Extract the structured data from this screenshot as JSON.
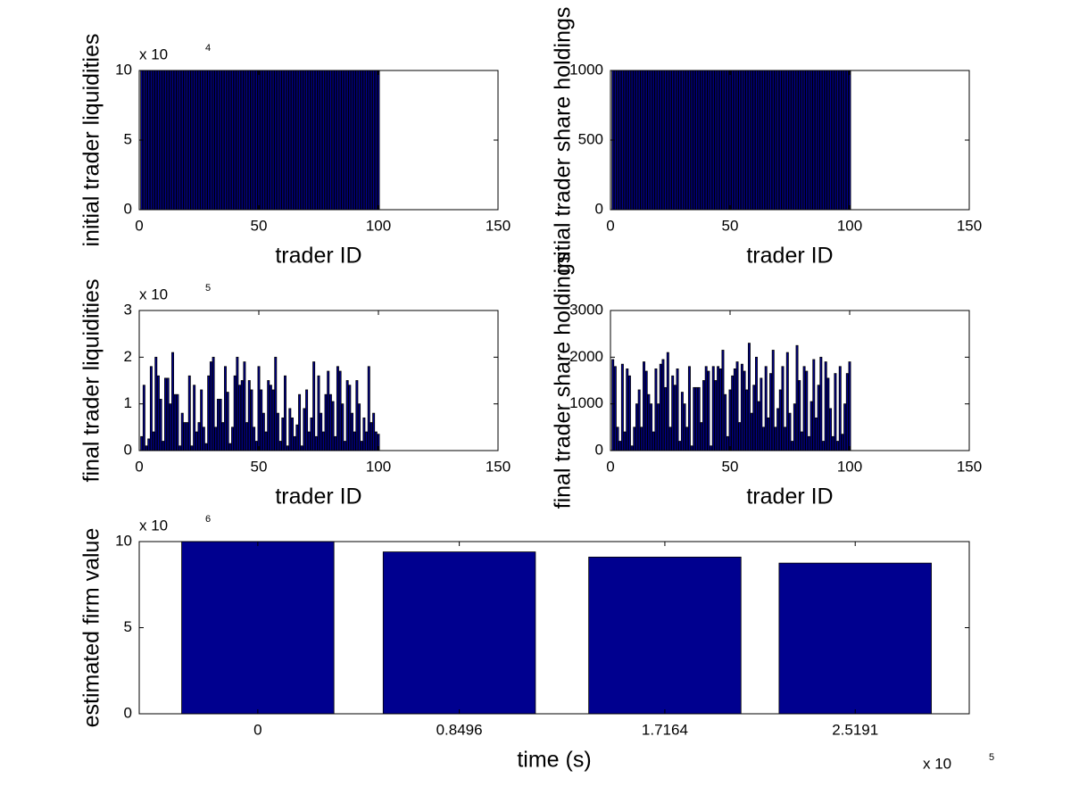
{
  "chart_data": [
    {
      "type": "bar",
      "ylabel": "initial trader liquidities",
      "xlabel": "trader ID",
      "y_scale": {
        "base": "x 10",
        "exponent": "4"
      },
      "color": "#00008f",
      "edge_color": "#000000",
      "x": [
        1,
        2,
        3,
        4,
        5,
        6,
        7,
        8,
        9,
        10,
        11,
        12,
        13,
        14,
        15,
        16,
        17,
        18,
        19,
        20,
        21,
        22,
        23,
        24,
        25,
        26,
        27,
        28,
        29,
        30,
        31,
        32,
        33,
        34,
        35,
        36,
        37,
        38,
        39,
        40,
        41,
        42,
        43,
        44,
        45,
        46,
        47,
        48,
        49,
        50,
        51,
        52,
        53,
        54,
        55,
        56,
        57,
        58,
        59,
        60,
        61,
        62,
        63,
        64,
        65,
        66,
        67,
        68,
        69,
        70,
        71,
        72,
        73,
        74,
        75,
        76,
        77,
        78,
        79,
        80,
        81,
        82,
        83,
        84,
        85,
        86,
        87,
        88,
        89,
        90,
        91,
        92,
        93,
        94,
        95,
        96,
        97,
        98,
        99,
        100
      ],
      "values": [
        10,
        10,
        10,
        10,
        10,
        10,
        10,
        10,
        10,
        10,
        10,
        10,
        10,
        10,
        10,
        10,
        10,
        10,
        10,
        10,
        10,
        10,
        10,
        10,
        10,
        10,
        10,
        10,
        10,
        10,
        10,
        10,
        10,
        10,
        10,
        10,
        10,
        10,
        10,
        10,
        10,
        10,
        10,
        10,
        10,
        10,
        10,
        10,
        10,
        10,
        10,
        10,
        10,
        10,
        10,
        10,
        10,
        10,
        10,
        10,
        10,
        10,
        10,
        10,
        10,
        10,
        10,
        10,
        10,
        10,
        10,
        10,
        10,
        10,
        10,
        10,
        10,
        10,
        10,
        10,
        10,
        10,
        10,
        10,
        10,
        10,
        10,
        10,
        10,
        10,
        10,
        10,
        10,
        10,
        10,
        10,
        10,
        10,
        10,
        10
      ],
      "xlim": [
        0,
        150
      ],
      "xticks": [
        0,
        50,
        100,
        150
      ],
      "ylim": [
        0,
        10
      ],
      "yticks": [
        0,
        5,
        10
      ]
    },
    {
      "type": "bar",
      "ylabel": "initial trader share holdings",
      "xlabel": "trader ID",
      "color": "#00008f",
      "edge_color": "#000000",
      "x": [
        1,
        2,
        3,
        4,
        5,
        6,
        7,
        8,
        9,
        10,
        11,
        12,
        13,
        14,
        15,
        16,
        17,
        18,
        19,
        20,
        21,
        22,
        23,
        24,
        25,
        26,
        27,
        28,
        29,
        30,
        31,
        32,
        33,
        34,
        35,
        36,
        37,
        38,
        39,
        40,
        41,
        42,
        43,
        44,
        45,
        46,
        47,
        48,
        49,
        50,
        51,
        52,
        53,
        54,
        55,
        56,
        57,
        58,
        59,
        60,
        61,
        62,
        63,
        64,
        65,
        66,
        67,
        68,
        69,
        70,
        71,
        72,
        73,
        74,
        75,
        76,
        77,
        78,
        79,
        80,
        81,
        82,
        83,
        84,
        85,
        86,
        87,
        88,
        89,
        90,
        91,
        92,
        93,
        94,
        95,
        96,
        97,
        98,
        99,
        100
      ],
      "values": [
        1000,
        1000,
        1000,
        1000,
        1000,
        1000,
        1000,
        1000,
        1000,
        1000,
        1000,
        1000,
        1000,
        1000,
        1000,
        1000,
        1000,
        1000,
        1000,
        1000,
        1000,
        1000,
        1000,
        1000,
        1000,
        1000,
        1000,
        1000,
        1000,
        1000,
        1000,
        1000,
        1000,
        1000,
        1000,
        1000,
        1000,
        1000,
        1000,
        1000,
        1000,
        1000,
        1000,
        1000,
        1000,
        1000,
        1000,
        1000,
        1000,
        1000,
        1000,
        1000,
        1000,
        1000,
        1000,
        1000,
        1000,
        1000,
        1000,
        1000,
        1000,
        1000,
        1000,
        1000,
        1000,
        1000,
        1000,
        1000,
        1000,
        1000,
        1000,
        1000,
        1000,
        1000,
        1000,
        1000,
        1000,
        1000,
        1000,
        1000,
        1000,
        1000,
        1000,
        1000,
        1000,
        1000,
        1000,
        1000,
        1000,
        1000,
        1000,
        1000,
        1000,
        1000,
        1000,
        1000,
        1000,
        1000,
        1000,
        1000
      ],
      "xlim": [
        0,
        150
      ],
      "xticks": [
        0,
        50,
        100,
        150
      ],
      "ylim": [
        0,
        1000
      ],
      "yticks": [
        0,
        500,
        1000
      ]
    },
    {
      "type": "bar",
      "ylabel": "final trader liquidities",
      "xlabel": "trader ID",
      "y_scale": {
        "base": "x 10",
        "exponent": "5"
      },
      "color": "#00008f",
      "edge_color": "#000000",
      "x": [
        1,
        2,
        3,
        4,
        5,
        6,
        7,
        8,
        9,
        10,
        11,
        12,
        13,
        14,
        15,
        16,
        17,
        18,
        19,
        20,
        21,
        22,
        23,
        24,
        25,
        26,
        27,
        28,
        29,
        30,
        31,
        32,
        33,
        34,
        35,
        36,
        37,
        38,
        39,
        40,
        41,
        42,
        43,
        44,
        45,
        46,
        47,
        48,
        49,
        50,
        51,
        52,
        53,
        54,
        55,
        56,
        57,
        58,
        59,
        60,
        61,
        62,
        63,
        64,
        65,
        66,
        67,
        68,
        69,
        70,
        71,
        72,
        73,
        74,
        75,
        76,
        77,
        78,
        79,
        80,
        81,
        82,
        83,
        84,
        85,
        86,
        87,
        88,
        89,
        90,
        91,
        92,
        93,
        94,
        95,
        96,
        97,
        98,
        99,
        100
      ],
      "values": [
        0.3,
        1.4,
        0.1,
        0.25,
        1.8,
        0.4,
        2.0,
        1.6,
        1.1,
        0.2,
        1.55,
        1.55,
        1.0,
        2.1,
        1.2,
        1.2,
        0.1,
        0.8,
        0.6,
        0.6,
        1.6,
        0.1,
        1.4,
        0.4,
        0.6,
        1.3,
        0.5,
        0.15,
        1.6,
        1.9,
        2.0,
        0.5,
        1.1,
        1.1,
        0.6,
        1.8,
        1.25,
        0.15,
        0.5,
        1.6,
        2.0,
        1.4,
        1.5,
        1.9,
        0.6,
        1.5,
        1.3,
        0.5,
        0.2,
        1.8,
        1.3,
        0.8,
        0.4,
        1.5,
        1.4,
        1.3,
        2.0,
        0.8,
        0.2,
        0.7,
        1.6,
        0.1,
        0.9,
        0.7,
        0.3,
        0.55,
        1.2,
        0.1,
        0.9,
        1.3,
        0.4,
        0.7,
        1.9,
        0.3,
        1.6,
        0.8,
        0.4,
        1.2,
        1.7,
        1.2,
        1.05,
        0.3,
        1.8,
        1.7,
        1.0,
        0.2,
        1.5,
        1.4,
        0.8,
        0.4,
        1.5,
        1.0,
        0.2,
        0.7,
        0.4,
        1.8,
        0.6,
        0.8,
        0.4,
        0.35
      ],
      "xlim": [
        0,
        150
      ],
      "xticks": [
        0,
        50,
        100,
        150
      ],
      "ylim": [
        0,
        3
      ],
      "yticks": [
        0,
        1,
        2,
        3
      ]
    },
    {
      "type": "bar",
      "ylabel": "final trader share holdings",
      "xlabel": "trader ID",
      "color": "#00008f",
      "edge_color": "#000000",
      "x": [
        1,
        2,
        3,
        4,
        5,
        6,
        7,
        8,
        9,
        10,
        11,
        12,
        13,
        14,
        15,
        16,
        17,
        18,
        19,
        20,
        21,
        22,
        23,
        24,
        25,
        26,
        27,
        28,
        29,
        30,
        31,
        32,
        33,
        34,
        35,
        36,
        37,
        38,
        39,
        40,
        41,
        42,
        43,
        44,
        45,
        46,
        47,
        48,
        49,
        50,
        51,
        52,
        53,
        54,
        55,
        56,
        57,
        58,
        59,
        60,
        61,
        62,
        63,
        64,
        65,
        66,
        67,
        68,
        69,
        70,
        71,
        72,
        73,
        74,
        75,
        76,
        77,
        78,
        79,
        80,
        81,
        82,
        83,
        84,
        85,
        86,
        87,
        88,
        89,
        90,
        91,
        92,
        93,
        94,
        95,
        96,
        97,
        98,
        99,
        100
      ],
      "values": [
        1950,
        1800,
        500,
        200,
        1850,
        400,
        1750,
        1600,
        100,
        500,
        1000,
        1300,
        500,
        1900,
        1700,
        1200,
        1000,
        400,
        1750,
        1000,
        1850,
        1950,
        1350,
        2100,
        500,
        1600,
        1400,
        1750,
        200,
        1250,
        1000,
        500,
        1800,
        100,
        1350,
        1350,
        1350,
        600,
        1500,
        1800,
        1700,
        100,
        1800,
        1500,
        1800,
        1750,
        2150,
        1200,
        300,
        1300,
        1600,
        1750,
        1900,
        600,
        1850,
        1700,
        1300,
        2300,
        800,
        1400,
        2000,
        1050,
        1550,
        500,
        1800,
        700,
        1650,
        2150,
        500,
        900,
        1300,
        1800,
        500,
        2100,
        800,
        200,
        1000,
        2250,
        1500,
        400,
        1800,
        1700,
        300,
        1050,
        1950,
        700,
        1400,
        2000,
        200,
        1900,
        1550,
        900,
        300,
        1650,
        200,
        1800,
        350,
        1000,
        1650,
        1900
      ],
      "xlim": [
        0,
        150
      ],
      "xticks": [
        0,
        50,
        100,
        150
      ],
      "ylim": [
        0,
        3000
      ],
      "yticks": [
        0,
        1000,
        2000,
        3000
      ]
    },
    {
      "type": "bar",
      "ylabel": "estimated firm value",
      "xlabel": "time (s)",
      "y_scale": {
        "base": "x 10",
        "exponent": "6"
      },
      "x_scale": {
        "base": "x 10",
        "exponent": "5"
      },
      "color": "#00008f",
      "edge_color": "#000000",
      "x": [
        0,
        0.8496,
        1.7164,
        2.5191
      ],
      "values": [
        10,
        9.4,
        9.1,
        8.75
      ],
      "xlim": [
        -0.5,
        3.0
      ],
      "xticks": [
        0,
        0.8496,
        1.7164,
        2.5191
      ],
      "ylim": [
        0,
        10
      ],
      "yticks": [
        0,
        5,
        10
      ]
    }
  ]
}
